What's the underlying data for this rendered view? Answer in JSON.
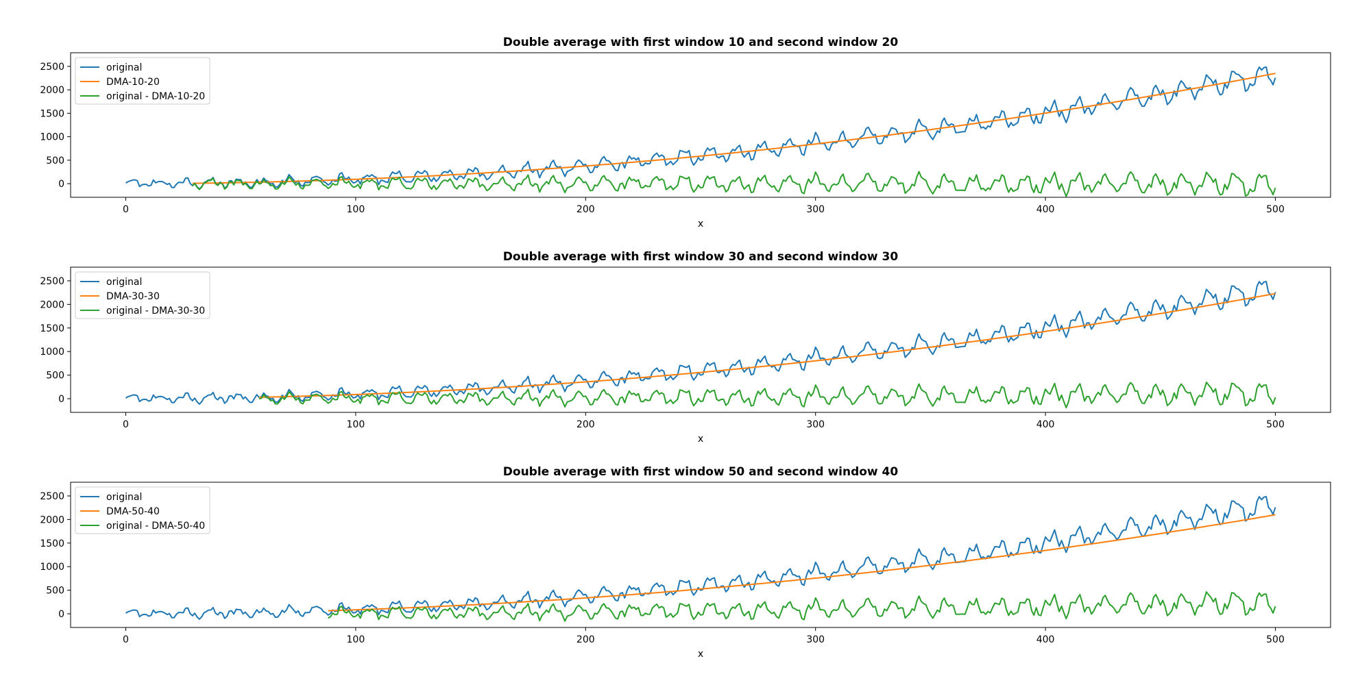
{
  "chart_data": [
    {
      "type": "line",
      "title": "Double average with first window 10 and second window 20",
      "xlabel": "x",
      "ylabel": "",
      "xlim": [
        -24,
        524
      ],
      "ylim": [
        -290,
        2790
      ],
      "xticks": [
        0,
        100,
        200,
        300,
        400,
        500
      ],
      "yticks": [
        0,
        500,
        1000,
        1500,
        2000,
        2500
      ],
      "legend_position": "upper-left",
      "grid": false,
      "series": [
        {
          "name": "original",
          "color": "#1f77b4",
          "kind": "original"
        },
        {
          "name": "DMA-10-20",
          "color": "#ff7f0e",
          "kind": "dma",
          "start": 29,
          "end_value": 2350
        },
        {
          "name": "original - DMA-10-20",
          "color": "#2ca02c",
          "kind": "diff",
          "start": 29
        }
      ]
    },
    {
      "type": "line",
      "title": "Double average with first window 30 and second window 30",
      "xlabel": "x",
      "ylabel": "",
      "xlim": [
        -24,
        524
      ],
      "ylim": [
        -290,
        2790
      ],
      "xticks": [
        0,
        100,
        200,
        300,
        400,
        500
      ],
      "yticks": [
        0,
        500,
        1000,
        1500,
        2000,
        2500
      ],
      "legend_position": "upper-left",
      "grid": false,
      "series": [
        {
          "name": "original",
          "color": "#1f77b4",
          "kind": "original"
        },
        {
          "name": "DMA-30-30",
          "color": "#ff7f0e",
          "kind": "dma",
          "start": 58,
          "end_value": 2230
        },
        {
          "name": "original - DMA-30-30",
          "color": "#2ca02c",
          "kind": "diff",
          "start": 58
        }
      ]
    },
    {
      "type": "line",
      "title": "Double average with first window 50 and second window 40",
      "xlabel": "x",
      "ylabel": "",
      "xlim": [
        -24,
        524
      ],
      "ylim": [
        -290,
        2790
      ],
      "xticks": [
        0,
        100,
        200,
        300,
        400,
        500
      ],
      "yticks": [
        0,
        500,
        1000,
        1500,
        2000,
        2500
      ],
      "legend_position": "upper-left",
      "grid": false,
      "series": [
        {
          "name": "original",
          "color": "#1f77b4",
          "kind": "original"
        },
        {
          "name": "DMA-50-40",
          "color": "#ff7f0e",
          "kind": "dma",
          "start": 88,
          "end_value": 2100
        },
        {
          "name": "original - DMA-50-40",
          "color": "#2ca02c",
          "kind": "diff",
          "start": 88
        }
      ]
    }
  ]
}
